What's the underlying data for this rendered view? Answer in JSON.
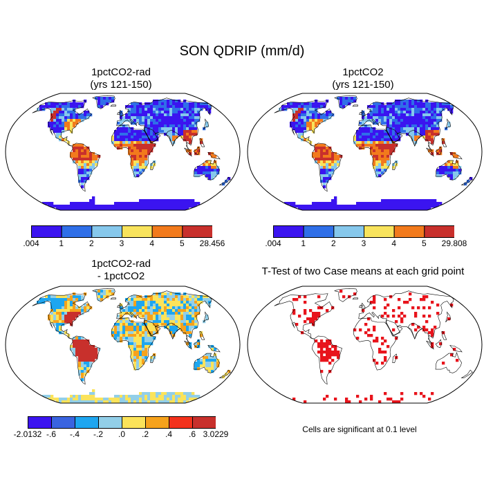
{
  "figure_title": "SON QDRIP (mm/d)",
  "panels": [
    {
      "title": "1pctCO2-rad\n(yrs 121-150)",
      "colorbar": {
        "colors": [
          "#3b14f0",
          "#2f6fe8",
          "#86c8ec",
          "#f8e35c",
          "#f27a1c",
          "#c8302c"
        ],
        "labels": [
          ".004",
          "1",
          "2",
          "3",
          "4",
          "5",
          "28.456"
        ]
      }
    },
    {
      "title": "1pctCO2\n(yrs 121-150)",
      "colorbar": {
        "colors": [
          "#3b14f0",
          "#2f6fe8",
          "#86c8ec",
          "#f8e35c",
          "#f27a1c",
          "#c8302c"
        ],
        "labels": [
          ".004",
          "1",
          "2",
          "3",
          "4",
          "5",
          "29.808"
        ]
      }
    },
    {
      "title": "1pctCO2-rad\n- 1pctCO2",
      "colorbar": {
        "colors": [
          "#3b14f0",
          "#3a64e0",
          "#1ea6f0",
          "#92cfe8",
          "#fbe35a",
          "#f6a21c",
          "#f3321c",
          "#c8302c"
        ],
        "labels": [
          "-2.0132",
          "-.6",
          "-.4",
          "-.2",
          ".0",
          ".2",
          ".4",
          ".6",
          "3.0229"
        ]
      }
    },
    {
      "title": "T-Test of two Case means at each grid point",
      "note": "Cells are significant at 0.1 level"
    }
  ],
  "legend_colors": {
    "ocean": "#ffffff",
    "coast": "#000000",
    "significant": "#e8141c"
  }
}
